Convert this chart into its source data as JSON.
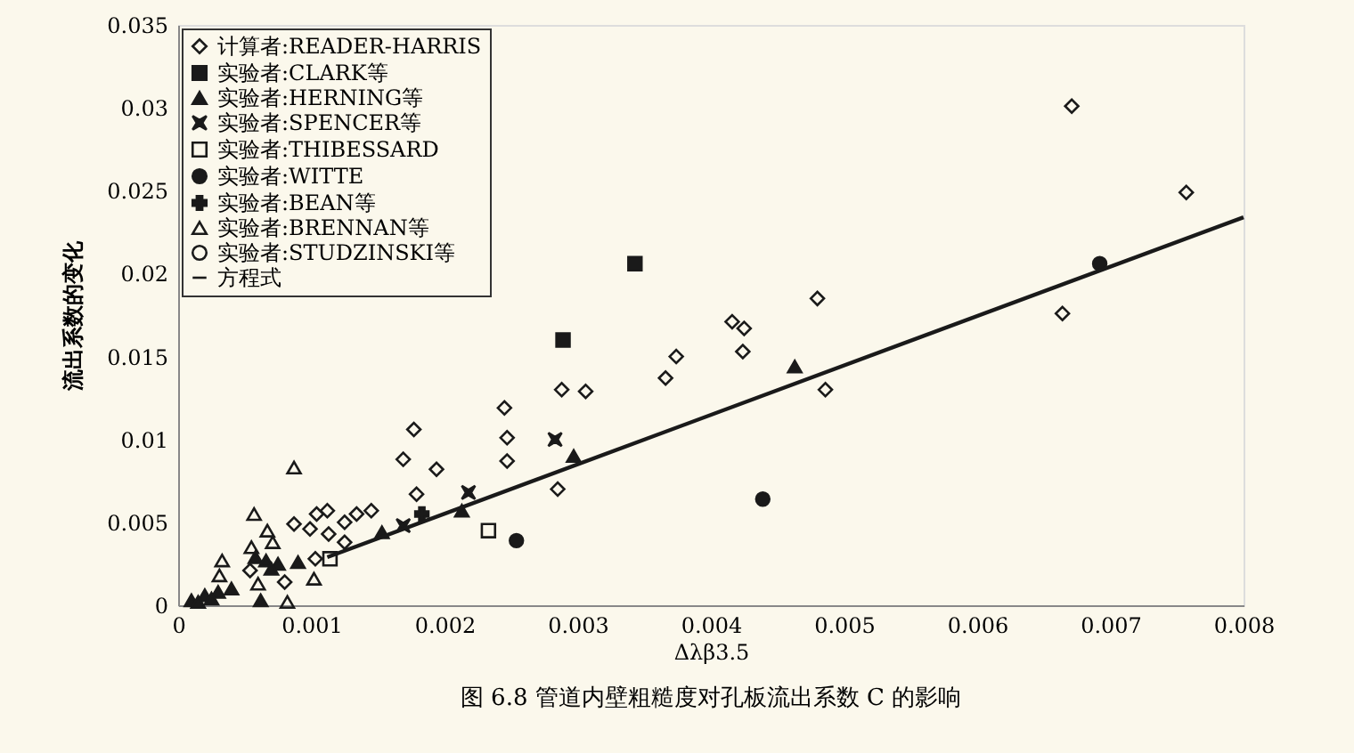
{
  "chart_data": {
    "type": "scatter",
    "title": "图 6.8  管道内壁粗糙度对孔板流出系数 C 的影响",
    "xlabel": "Δλβ3.5",
    "ylabel": "流出系数的变化",
    "xlim": [
      0,
      0.008
    ],
    "xticks": [
      0,
      0.001,
      0.002,
      0.003,
      0.004,
      0.005,
      0.006,
      0.007,
      0.008
    ],
    "ylim": [
      0,
      0.035
    ],
    "yticks": [
      0,
      0.005,
      0.01,
      0.015,
      0.02,
      0.025,
      0.03,
      0.035
    ],
    "grid": false,
    "legend": "top left",
    "series": [
      {
        "name": "计算者:READER-HARRIS",
        "color": "#1a1a1a",
        "marker": "diamond-open",
        "x": [
          0.00671,
          0.00757,
          0.00664,
          0.0048,
          0.00486,
          0.00416,
          0.00425,
          0.00424,
          0.00374,
          0.00366,
          0.00288,
          0.00306,
          0.00285,
          0.00245,
          0.00247,
          0.00247,
          0.00177,
          0.00169,
          0.00194,
          0.00179,
          0.00145,
          0.00134,
          0.00125,
          0.00112,
          0.00104,
          0.00113,
          0.00099,
          0.00087,
          0.00125,
          0.00103,
          0.0008,
          0.00054
        ],
        "values": [
          0.0301,
          0.0249,
          0.0176,
          0.0185,
          0.013,
          0.0171,
          0.0167,
          0.0153,
          0.015,
          0.0137,
          0.013,
          0.0129,
          0.007,
          0.0119,
          0.0101,
          0.0087,
          0.0106,
          0.0088,
          0.0082,
          0.0067,
          0.0057,
          0.0055,
          0.005,
          0.0057,
          0.0055,
          0.0043,
          0.0046,
          0.0049,
          0.0038,
          0.0028,
          0.0014,
          0.0021
        ]
      },
      {
        "name": "实验者:CLARK等",
        "color": "#1a1a1a",
        "marker": "square",
        "x": [
          0.00343,
          0.00289
        ],
        "values": [
          0.0206,
          0.016
        ]
      },
      {
        "name": "实验者:HERNING等",
        "color": "#1a1a1a",
        "marker": "triangle",
        "x": [
          0.00463,
          0.00297,
          0.00213,
          0.00153,
          0.00062,
          0.0001,
          0.0002,
          0.0003,
          0.0004,
          0.00015,
          0.00025,
          0.00058,
          0.00066,
          0.00075,
          0.0009,
          0.0007
        ],
        "values": [
          0.0144,
          0.009,
          0.0057,
          0.0044,
          0.0003,
          0.0003,
          0.0006,
          0.0008,
          0.001,
          0.0002,
          0.0004,
          0.0029,
          0.0027,
          0.0025,
          0.0026,
          0.0022
        ]
      },
      {
        "name": "实验者:SPENCER等",
        "color": "#1a1a1a",
        "marker": "x",
        "x": [
          0.00283,
          0.00218,
          0.00169
        ],
        "values": [
          0.01,
          0.0068,
          0.0048
        ]
      },
      {
        "name": "实验者:THIBESSARD",
        "color": "#1a1a1a",
        "marker": "square-open",
        "x": [
          0.00233,
          0.00114
        ],
        "values": [
          0.0045,
          0.0028
        ]
      },
      {
        "name": "实验者:WITTE",
        "color": "#1a1a1a",
        "marker": "circle",
        "x": [
          0.00692,
          0.00439,
          0.00254
        ],
        "values": [
          0.0206,
          0.0064,
          0.0039
        ]
      },
      {
        "name": "实验者:BEAN等",
        "color": "#1a1a1a",
        "marker": "cross",
        "x": [
          0.00183
        ],
        "values": [
          0.0055
        ]
      },
      {
        "name": "实验者:BRENNAN等",
        "color": "#1a1a1a",
        "marker": "triangle-open",
        "x": [
          0.00087,
          0.00057,
          0.00067,
          0.00055,
          0.00071,
          0.00102,
          0.00082,
          0.00033,
          0.0006,
          0.00031
        ],
        "values": [
          0.0083,
          0.0055,
          0.0045,
          0.0035,
          0.0038,
          0.0016,
          0.0002,
          0.0027,
          0.0013,
          0.0018
        ]
      },
      {
        "name": "实验者:STUDZINSKI等",
        "color": "#1a1a1a",
        "marker": "circle-open"
      },
      {
        "name": "方程式",
        "color": "#1a1a1a",
        "type": "line",
        "marker": "none",
        "line_style": "solid",
        "x": [
          0.00112,
          0.008
        ],
        "values": [
          0.0029,
          0.0234
        ]
      }
    ]
  }
}
